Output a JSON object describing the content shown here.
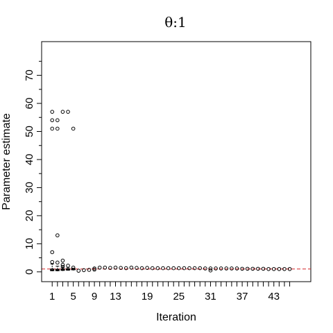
{
  "chart_data": {
    "type": "scatter",
    "title": "θ:1",
    "xlabel": "Iteration",
    "ylabel": "Parameter estimate",
    "xlim": [
      -1,
      50
    ],
    "ylim": [
      -3.5,
      82
    ],
    "x_ticks": [
      1,
      5,
      9,
      13,
      19,
      25,
      31,
      37,
      43
    ],
    "x_tick_marks": [
      1,
      2,
      3,
      4,
      5,
      6,
      7,
      8,
      9,
      10,
      11,
      12,
      13,
      14,
      15,
      16,
      17,
      18,
      19,
      20,
      21,
      22,
      23,
      24,
      25,
      26,
      27,
      28,
      29,
      30,
      31,
      32,
      33,
      34,
      35,
      36,
      37,
      38,
      39,
      40,
      41,
      42,
      43,
      44,
      45,
      46
    ],
    "y_ticks": [
      0,
      10,
      20,
      30,
      40,
      50,
      60,
      70
    ],
    "y_minor_ticks": [
      5,
      15,
      25,
      35,
      45,
      55,
      65,
      75
    ],
    "reference_line": {
      "y": 1,
      "color": "#d62728",
      "style": "dashed"
    },
    "grid": false,
    "boxes": [
      {
        "x": 1,
        "q1": 0.4,
        "median": 0.6,
        "q3": 1.0,
        "whisker_low": 0.2,
        "whisker_high": 2.8
      },
      {
        "x": 2,
        "q1": 0.4,
        "median": 0.6,
        "q3": 0.9,
        "whisker_low": 0.2,
        "whisker_high": 2.0
      },
      {
        "x": 3,
        "q1": 0.5,
        "median": 0.7,
        "q3": 1.0,
        "whisker_low": 0.3,
        "whisker_high": 1.6
      },
      {
        "x": 4,
        "q1": 0.6,
        "median": 0.8,
        "q3": 1.0,
        "whisker_low": 0.4,
        "whisker_high": 1.4
      },
      {
        "x": 5,
        "q1": 0.7,
        "median": 0.85,
        "q3": 1.0,
        "whisker_low": 0.5,
        "whisker_high": 1.3
      }
    ],
    "outliers": [
      {
        "x": 1,
        "y": 57
      },
      {
        "x": 1,
        "y": 54
      },
      {
        "x": 1,
        "y": 51
      },
      {
        "x": 1,
        "y": 7
      },
      {
        "x": 1,
        "y": 3.5
      },
      {
        "x": 2,
        "y": 54
      },
      {
        "x": 2,
        "y": 51
      },
      {
        "x": 2,
        "y": 13
      },
      {
        "x": 2,
        "y": 3.3
      },
      {
        "x": 3,
        "y": 57
      },
      {
        "x": 3,
        "y": 4
      },
      {
        "x": 3,
        "y": 2.5
      },
      {
        "x": 3,
        "y": 1.8
      },
      {
        "x": 4,
        "y": 57
      },
      {
        "x": 4,
        "y": 2.2
      },
      {
        "x": 5,
        "y": 51
      },
      {
        "x": 5,
        "y": 1.5
      },
      {
        "x": 6,
        "y": 0.4
      },
      {
        "x": 7,
        "y": 0.6
      },
      {
        "x": 8,
        "y": 0.7
      },
      {
        "x": 9,
        "y": 0.8
      },
      {
        "x": 9,
        "y": 1.2
      },
      {
        "x": 10,
        "y": 1.5
      },
      {
        "x": 11,
        "y": 1.5
      },
      {
        "x": 12,
        "y": 1.4
      },
      {
        "x": 13,
        "y": 1.5
      },
      {
        "x": 14,
        "y": 1.4
      },
      {
        "x": 15,
        "y": 1.3
      },
      {
        "x": 16,
        "y": 1.5
      },
      {
        "x": 17,
        "y": 1.4
      },
      {
        "x": 18,
        "y": 1.3
      },
      {
        "x": 19,
        "y": 1.4
      },
      {
        "x": 20,
        "y": 1.3
      },
      {
        "x": 21,
        "y": 1.3
      },
      {
        "x": 22,
        "y": 1.3
      },
      {
        "x": 23,
        "y": 1.3
      },
      {
        "x": 24,
        "y": 1.3
      },
      {
        "x": 25,
        "y": 1.3
      },
      {
        "x": 26,
        "y": 1.3
      },
      {
        "x": 27,
        "y": 1.3
      },
      {
        "x": 28,
        "y": 1.3
      },
      {
        "x": 29,
        "y": 1.3
      },
      {
        "x": 30,
        "y": 1.2
      },
      {
        "x": 31,
        "y": 0.5
      },
      {
        "x": 31,
        "y": 1.2
      },
      {
        "x": 32,
        "y": 1.2
      },
      {
        "x": 33,
        "y": 1.2
      },
      {
        "x": 34,
        "y": 1.2
      },
      {
        "x": 35,
        "y": 1.2
      },
      {
        "x": 36,
        "y": 1.2
      },
      {
        "x": 37,
        "y": 1.1
      },
      {
        "x": 38,
        "y": 1.1
      },
      {
        "x": 39,
        "y": 1.1
      },
      {
        "x": 40,
        "y": 1.1
      },
      {
        "x": 41,
        "y": 1.1
      },
      {
        "x": 42,
        "y": 1.0
      },
      {
        "x": 43,
        "y": 1.0
      },
      {
        "x": 44,
        "y": 1.0
      },
      {
        "x": 45,
        "y": 1.0
      },
      {
        "x": 46,
        "y": 1.0
      }
    ]
  }
}
